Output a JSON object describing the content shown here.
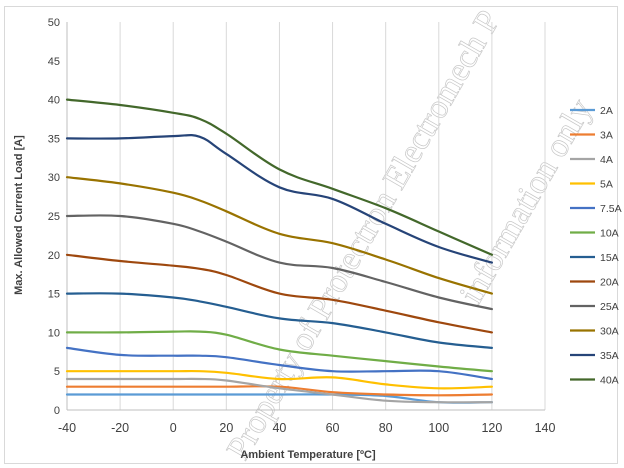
{
  "chart_data": {
    "type": "line",
    "title": "",
    "xlabel": "Ambient Temperature [ºC]",
    "ylabel": "Max. Allowed Current Load [A]",
    "xlim": [
      -40,
      140
    ],
    "ylim": [
      0,
      50
    ],
    "xticks": [
      -40,
      -20,
      0,
      20,
      40,
      60,
      80,
      100,
      120,
      140
    ],
    "yticks": [
      0,
      5,
      10,
      15,
      20,
      25,
      30,
      35,
      40,
      45,
      50
    ],
    "grid": "vertical",
    "legend_position": "right",
    "x": [
      -40,
      -20,
      0,
      10,
      20,
      40,
      60,
      80,
      100,
      120
    ],
    "series": [
      {
        "name": "2A",
        "color": "#5b9bd5",
        "values": [
          2,
          2,
          2,
          2,
          2,
          2,
          2,
          1.8,
          1,
          1
        ]
      },
      {
        "name": "3A",
        "color": "#ed7d31",
        "values": [
          3,
          3,
          3,
          3,
          3,
          3,
          2.3,
          2,
          1.9,
          2
        ]
      },
      {
        "name": "4A",
        "color": "#a5a5a5",
        "values": [
          4,
          4,
          4,
          4,
          3.8,
          2.8,
          2,
          1.2,
          1,
          1
        ]
      },
      {
        "name": "5A",
        "color": "#ffc000",
        "values": [
          5,
          5,
          5,
          5,
          4.8,
          4,
          4.2,
          3.3,
          2.8,
          3
        ]
      },
      {
        "name": "7.5A",
        "color": "#4472c4",
        "values": [
          8,
          7.1,
          7,
          7,
          6.8,
          5.8,
          5,
          5,
          5,
          4
        ]
      },
      {
        "name": "10A",
        "color": "#70ad47",
        "values": [
          10,
          10,
          10.1,
          10.1,
          9.7,
          7.8,
          7,
          6.3,
          5.6,
          5
        ]
      },
      {
        "name": "15A",
        "color": "#255e91",
        "values": [
          15,
          15,
          14.5,
          14,
          13.3,
          11.8,
          11.2,
          10,
          8.7,
          8
        ]
      },
      {
        "name": "20A",
        "color": "#9e480e",
        "values": [
          20,
          19.2,
          18.6,
          18.2,
          17.4,
          15,
          14.2,
          12.8,
          11.3,
          10
        ]
      },
      {
        "name": "25A",
        "color": "#636363",
        "values": [
          25,
          25,
          24,
          23,
          21.7,
          19,
          18.3,
          16.5,
          14.5,
          13
        ]
      },
      {
        "name": "30A",
        "color": "#997300",
        "values": [
          30,
          29.2,
          28,
          27,
          25.6,
          22.7,
          21.5,
          19.4,
          17,
          15
        ]
      },
      {
        "name": "35A",
        "color": "#264478",
        "values": [
          35,
          35,
          35.3,
          35.2,
          33,
          28.7,
          27.2,
          24,
          21,
          19
        ]
      },
      {
        "name": "40A",
        "color": "#43682b",
        "values": [
          40,
          39.3,
          38.3,
          37.5,
          35.6,
          31,
          28.5,
          26,
          23,
          20
        ]
      }
    ],
    "watermark": [
      "Property of Protectron Electromech P",
      "information only"
    ]
  }
}
